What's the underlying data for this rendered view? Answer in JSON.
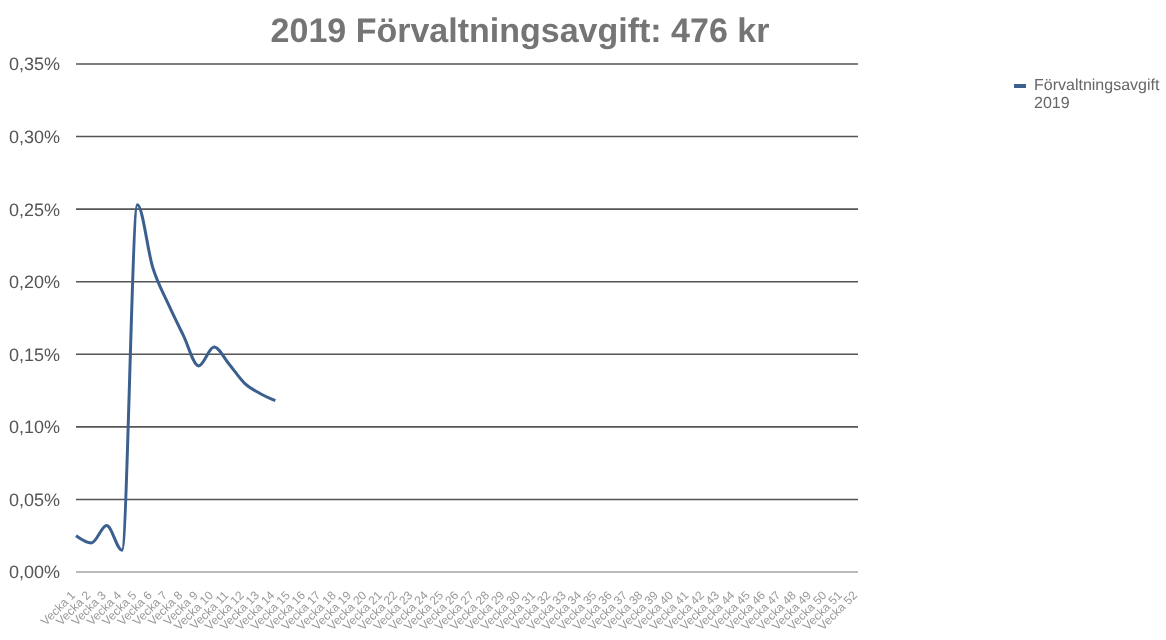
{
  "chart_data": {
    "type": "line",
    "title": "2019 Förvaltningsavgift: 476 kr",
    "categories": [
      "Vecka 1",
      "Vecka 2",
      "Vecka 3",
      "Vecka 4",
      "Vecka 5",
      "Vecka 6",
      "Vecka 7",
      "Vecka 8",
      "Vecka 9",
      "Vecka 10",
      "Vecka 11",
      "Vecka 12",
      "Vecka 13",
      "Vecka 14",
      "Vecka 15",
      "Vecka 16",
      "Vecka 17",
      "Vecka 18",
      "Vecka 19",
      "Vecka 20",
      "Vecka 21",
      "Vecka 22",
      "Vecka 23",
      "Vecka 24",
      "Vecka 25",
      "Vecka 26",
      "Vecka 27",
      "Vecka 28",
      "Vecka 29",
      "Vecka 30",
      "Vecka 31",
      "Vecka 32",
      "Vecka 33",
      "Vecka 34",
      "Vecka 35",
      "Vecka 36",
      "Vecka 37",
      "Vecka 38",
      "Vecka 39",
      "Vecka 40",
      "Vecka 41",
      "Vecka 42",
      "Vecka 43",
      "Vecka 44",
      "Vecka 45",
      "Vecka 46",
      "Vecka 47",
      "Vecka 48",
      "Vecka 49",
      "Vecka 50",
      "Vecka 51",
      "Vecka 52"
    ],
    "series": [
      {
        "name": "Förvaltningsavgift 2019",
        "color": "#3b5f8f",
        "values": [
          0.025,
          0.02,
          0.032,
          0.015,
          0.253,
          0.21,
          0.185,
          0.163,
          0.142,
          0.155,
          0.143,
          0.13,
          0.123,
          0.118,
          null,
          null,
          null,
          null,
          null,
          null,
          null,
          null,
          null,
          null,
          null,
          null,
          null,
          null,
          null,
          null,
          null,
          null,
          null,
          null,
          null,
          null,
          null,
          null,
          null,
          null,
          null,
          null,
          null,
          null,
          null,
          null,
          null,
          null,
          null,
          null,
          null,
          null
        ]
      }
    ],
    "ylim": [
      0,
      0.35
    ],
    "yticks": [
      {
        "value": 0,
        "label": "0,00%"
      },
      {
        "value": 0.05,
        "label": "0,05%"
      },
      {
        "value": 0.1,
        "label": "0,10%"
      },
      {
        "value": 0.15,
        "label": "0,15%"
      },
      {
        "value": 0.2,
        "label": "0,20%"
      },
      {
        "value": 0.25,
        "label": "0,25%"
      },
      {
        "value": 0.3,
        "label": "0,30%"
      },
      {
        "value": 0.35,
        "label": "0,35%"
      }
    ],
    "grid": "y",
    "legend": "top right",
    "marker": "none",
    "line_style": "solid"
  }
}
